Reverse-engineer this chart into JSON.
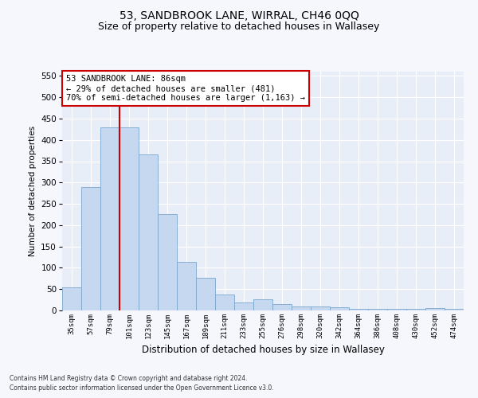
{
  "title": "53, SANDBROOK LANE, WIRRAL, CH46 0QQ",
  "subtitle": "Size of property relative to detached houses in Wallasey",
  "xlabel": "Distribution of detached houses by size in Wallasey",
  "ylabel": "Number of detached properties",
  "categories": [
    "35sqm",
    "57sqm",
    "79sqm",
    "101sqm",
    "123sqm",
    "145sqm",
    "167sqm",
    "189sqm",
    "211sqm",
    "233sqm",
    "255sqm",
    "276sqm",
    "298sqm",
    "320sqm",
    "342sqm",
    "364sqm",
    "386sqm",
    "408sqm",
    "430sqm",
    "452sqm",
    "474sqm"
  ],
  "values": [
    55,
    290,
    430,
    430,
    365,
    225,
    113,
    77,
    38,
    18,
    27,
    15,
    10,
    10,
    8,
    4,
    4,
    4,
    4,
    5,
    3
  ],
  "bar_color": "#c5d8f0",
  "bar_edge_color": "#7ba7cc",
  "vline_x_index": 2.5,
  "vline_color": "#cc0000",
  "annotation_text": "53 SANDBROOK LANE: 86sqm\n← 29% of detached houses are smaller (481)\n70% of semi-detached houses are larger (1,163) →",
  "annotation_box_color": "#ffffff",
  "annotation_box_edge": "#cc0000",
  "ylim": [
    0,
    560
  ],
  "yticks": [
    0,
    50,
    100,
    150,
    200,
    250,
    300,
    350,
    400,
    450,
    500,
    550
  ],
  "bg_color": "#e8eef8",
  "grid_color": "#ffffff",
  "fig_bg_color": "#f5f7fd",
  "footer_line1": "Contains HM Land Registry data © Crown copyright and database right 2024.",
  "footer_line2": "Contains public sector information licensed under the Open Government Licence v3.0.",
  "title_fontsize": 10,
  "subtitle_fontsize": 9
}
